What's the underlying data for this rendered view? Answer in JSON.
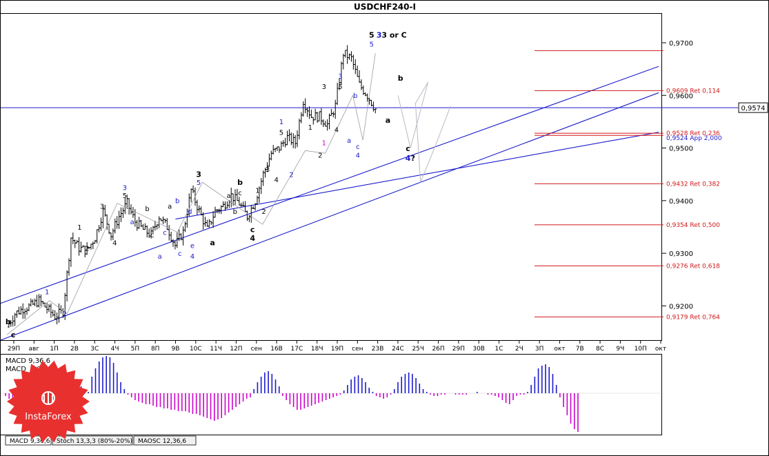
{
  "window": {
    "title": "USDCHF240-I",
    "tabs": [
      "MACD 9,36,6",
      "Stoch 13,3,3 (80%-20%)",
      "MAOSC 12,36,6"
    ],
    "active_tab": 0
  },
  "brand": {
    "logo_text": "InstaForex",
    "logo_color": "#e8312f"
  },
  "chart_data": [
    {
      "type": "line",
      "subtype": "ohlc-bars",
      "title": "USDCHF240-I",
      "ylim": [
        0.9135,
        0.9755
      ],
      "yticks": [
        0.92,
        0.93,
        0.94,
        0.95,
        0.96,
        0.97
      ],
      "ytick_labels": [
        "0,9200",
        "0,9300",
        "0,9400",
        "0,9500",
        "0,9600",
        "0,9700"
      ],
      "current_price": {
        "value": 0.9574,
        "label": "0,9574"
      },
      "x_tick_labels": [
        "29П",
        "авг",
        "1П",
        "2В",
        "3С",
        "4Ч",
        "5П",
        "8П",
        "9В",
        "10С",
        "11Ч",
        "12П",
        "сен",
        "16В",
        "17С",
        "18Ч",
        "19П",
        "сен",
        "23В",
        "24С",
        "25Ч",
        "26П",
        "29П",
        "30В",
        "1С",
        "2Ч",
        "3П",
        "окт",
        "7В",
        "8С",
        "9Ч",
        "10П",
        "окт"
      ],
      "x_count": 47,
      "close_path": [
        [
          0,
          0.916
        ],
        [
          1,
          0.9185
        ],
        [
          2,
          0.9195
        ],
        [
          3,
          0.92
        ],
        [
          4,
          0.921
        ],
        [
          5,
          0.9195
        ],
        [
          6,
          0.918
        ],
        [
          7,
          0.919
        ],
        [
          8,
          0.933
        ],
        [
          9,
          0.931
        ],
        [
          10,
          0.9305
        ],
        [
          11,
          0.933
        ],
        [
          12,
          0.938
        ],
        [
          13,
          0.9335
        ],
        [
          14,
          0.937
        ],
        [
          15,
          0.9395
        ],
        [
          16,
          0.936
        ],
        [
          17,
          0.9345
        ],
        [
          18,
          0.9335
        ],
        [
          19,
          0.937
        ],
        [
          20,
          0.935
        ],
        [
          21,
          0.9315
        ],
        [
          22,
          0.934
        ],
        [
          23,
          0.942
        ],
        [
          24,
          0.938
        ],
        [
          25,
          0.9345
        ],
        [
          26,
          0.938
        ],
        [
          27,
          0.939
        ],
        [
          28,
          0.941
        ],
        [
          29,
          0.9395
        ],
        [
          30,
          0.937
        ],
        [
          31,
          0.94
        ],
        [
          32,
          0.945
        ],
        [
          33,
          0.949
        ],
        [
          34,
          0.95
        ],
        [
          35,
          0.952
        ],
        [
          36,
          0.951
        ],
        [
          37,
          0.959
        ],
        [
          38,
          0.956
        ],
        [
          39,
          0.956
        ],
        [
          40,
          0.9545
        ],
        [
          41,
          0.958
        ],
        [
          42,
          0.968
        ],
        [
          43,
          0.967
        ],
        [
          44,
          0.962
        ],
        [
          45,
          0.96
        ],
        [
          46,
          0.9574
        ]
      ],
      "forecast_path": [
        [
          46,
          0.96
        ],
        [
          47,
          0.95
        ],
        [
          48,
          0.959
        ],
        [
          49,
          0.9625
        ],
        [
          50,
          0.9435
        ],
        [
          51,
          0.9505
        ],
        [
          52,
          0.958
        ]
      ],
      "channels": [
        {
          "x1": 0,
          "y1": 0.9205,
          "x2": 52,
          "y2": 0.9655
        },
        {
          "x1": 0,
          "y1": 0.9135,
          "x2": 52,
          "y2": 0.9605
        },
        {
          "x1": 14,
          "y1": 0.9365,
          "x2": 52,
          "y2": 0.953
        }
      ],
      "fib_levels": [
        {
          "value": 0.9685,
          "label": ""
        },
        {
          "value": 0.9609,
          "label": "0,9609 Ret 0,114"
        },
        {
          "value": 0.9528,
          "label": "0,9528 Ret 0,236"
        },
        {
          "value": 0.9524,
          "label": "0,9524 App 2,000"
        },
        {
          "value": 0.9432,
          "label": "0,9432 Ret 0,382"
        },
        {
          "value": 0.9354,
          "label": "0,9354 Ret 0,500"
        },
        {
          "value": 0.9276,
          "label": "0,9276 Ret 0,618"
        },
        {
          "value": 0.9179,
          "label": "0,9179 Ret 0,764"
        }
      ],
      "wave_labels": [
        {
          "text": "b",
          "x": 0.1,
          "y": 0.9165,
          "color": "#000000",
          "bold": true
        },
        {
          "text": "c",
          "x": 0.5,
          "y": 0.914,
          "color": "#000000",
          "bold": true
        },
        {
          "text": "1",
          "x": 3.2,
          "y": 0.9222,
          "color": "#1a1acc"
        },
        {
          "text": "2",
          "x": 4.6,
          "y": 0.918,
          "color": "#1a1acc"
        },
        {
          "text": "1",
          "x": 5.8,
          "y": 0.9345,
          "color": "#000000"
        },
        {
          "text": "2",
          "x": 6.4,
          "y": 0.9305,
          "color": "#000000"
        },
        {
          "text": "3",
          "x": 7.6,
          "y": 0.9385,
          "color": "#000000"
        },
        {
          "text": "4",
          "x": 8.6,
          "y": 0.9315,
          "color": "#000000"
        },
        {
          "text": "3",
          "x": 9.4,
          "y": 0.942,
          "color": "#1a1acc"
        },
        {
          "text": "5",
          "x": 9.4,
          "y": 0.9405,
          "color": "#000000"
        },
        {
          "text": "a",
          "x": 10.0,
          "y": 0.9355,
          "color": "#1a1acc"
        },
        {
          "text": "b",
          "x": 11.2,
          "y": 0.938,
          "color": "#000000"
        },
        {
          "text": "c",
          "x": 11.6,
          "y": 0.933,
          "color": "#000000"
        },
        {
          "text": "a",
          "x": 12.2,
          "y": 0.929,
          "color": "#1a1acc"
        },
        {
          "text": "a",
          "x": 13.0,
          "y": 0.9385,
          "color": "#000000"
        },
        {
          "text": "b",
          "x": 13.6,
          "y": 0.9395,
          "color": "#1a1acc"
        },
        {
          "text": "c",
          "x": 12.6,
          "y": 0.9335,
          "color": "#1a1acc"
        },
        {
          "text": "c",
          "x": 13.8,
          "y": 0.9295,
          "color": "#1a1acc"
        },
        {
          "text": "d",
          "x": 14.6,
          "y": 0.9375,
          "color": "#1a1acc"
        },
        {
          "text": "e",
          "x": 14.8,
          "y": 0.931,
          "color": "#1a1acc"
        },
        {
          "text": "4",
          "x": 14.8,
          "y": 0.929,
          "color": "#1a1acc"
        },
        {
          "text": "3",
          "x": 15.3,
          "y": 0.9445,
          "color": "#000000",
          "bold": true
        },
        {
          "text": "5",
          "x": 15.3,
          "y": 0.943,
          "color": "#1a1acc"
        },
        {
          "text": "a",
          "x": 16.4,
          "y": 0.9315,
          "color": "#000000",
          "bold": true
        },
        {
          "text": "b",
          "x": 18.6,
          "y": 0.943,
          "color": "#000000",
          "bold": true
        },
        {
          "text": "c",
          "x": 19.6,
          "y": 0.934,
          "color": "#000000",
          "bold": true
        },
        {
          "text": "4",
          "x": 19.6,
          "y": 0.9324,
          "color": "#000000",
          "bold": true
        },
        {
          "text": "a",
          "x": 17.7,
          "y": 0.9405,
          "color": "#000000"
        },
        {
          "text": "b",
          "x": 18.2,
          "y": 0.9375,
          "color": "#000000"
        },
        {
          "text": "c",
          "x": 18.6,
          "y": 0.941,
          "color": "#000000"
        },
        {
          "text": "1",
          "x": 20.0,
          "y": 0.9415,
          "color": "#000000"
        },
        {
          "text": "2",
          "x": 20.5,
          "y": 0.9375,
          "color": "#000000"
        },
        {
          "text": "3",
          "x": 20.8,
          "y": 0.9455,
          "color": "#000000"
        },
        {
          "text": "4",
          "x": 21.5,
          "y": 0.9435,
          "color": "#000000"
        },
        {
          "text": "1",
          "x": 21.9,
          "y": 0.9545,
          "color": "#1a1acc"
        },
        {
          "text": "5",
          "x": 21.9,
          "y": 0.9525,
          "color": "#000000"
        },
        {
          "text": "2",
          "x": 22.7,
          "y": 0.9445,
          "color": "#1a1acc"
        },
        {
          "text": "1",
          "x": 24.2,
          "y": 0.9535,
          "color": "#000000"
        },
        {
          "text": "1",
          "x": 25.3,
          "y": 0.9505,
          "color": "#cc00cc"
        },
        {
          "text": "2",
          "x": 25.0,
          "y": 0.9482,
          "color": "#000000"
        },
        {
          "text": "3",
          "x": 25.3,
          "y": 0.9612,
          "color": "#000000"
        },
        {
          "text": "5",
          "x": 26.6,
          "y": 0.9612,
          "color": "#000000"
        },
        {
          "text": "3",
          "x": 26.6,
          "y": 0.9632,
          "color": "#1a1acc"
        },
        {
          "text": "4",
          "x": 26.3,
          "y": 0.953,
          "color": "#000000"
        },
        {
          "text": "a",
          "x": 27.3,
          "y": 0.951,
          "color": "#1a1acc"
        },
        {
          "text": "b",
          "x": 27.8,
          "y": 0.9595,
          "color": "#1a1acc"
        },
        {
          "text": "c",
          "x": 28.0,
          "y": 0.9498,
          "color": "#1a1acc"
        },
        {
          "text": "4",
          "x": 28.0,
          "y": 0.9482,
          "color": "#1a1acc"
        },
        {
          "text": "5",
          "x": 29.1,
          "y": 0.971,
          "color": "#000000",
          "bold": true
        },
        {
          "text": "3",
          "x": 29.7,
          "y": 0.971,
          "color": "#1a1acc",
          "bold": true
        },
        {
          "text": "3 or C",
          "x": 30.9,
          "y": 0.971,
          "color": "#000000",
          "bold": true
        },
        {
          "text": "5",
          "x": 29.1,
          "y": 0.9693,
          "color": "#1a1acc"
        },
        {
          "text": "b",
          "x": 31.4,
          "y": 0.9628,
          "color": "#000000",
          "bold": true
        },
        {
          "text": "a",
          "x": 30.4,
          "y": 0.9548,
          "color": "#000000",
          "bold": true
        },
        {
          "text": "c",
          "x": 32.0,
          "y": 0.9494,
          "color": "#000000",
          "bold": true
        },
        {
          "text": "4",
          "x": 32.0,
          "y": 0.9476,
          "color": "#1a1acc",
          "bold": true
        },
        {
          "text": "?",
          "x": 32.4,
          "y": 0.9476,
          "color": "#000000",
          "bold": true
        }
      ]
    },
    {
      "type": "bar",
      "title": "MACD 9,36,6",
      "labels": {
        "main": "MACD 9,36,6",
        "value": "0,00"
      },
      "ylim": [
        -0.003,
        0.0028
      ],
      "colors": {
        "positive": "#1a1acc",
        "negative": "#cc00cc"
      },
      "values": [
        -0.0002,
        -0.0004,
        -0.0006,
        -0.0008,
        -0.001,
        -0.0011,
        -0.001,
        -0.0009,
        -0.0008,
        -0.0007,
        -0.0005,
        -0.0003,
        -0.0001,
        0.0002,
        0.0004,
        0.0006,
        0.0008,
        0.0009,
        0.001,
        0.0009,
        0.0007,
        0.0005,
        0.0003,
        0.0001,
        0.0012,
        0.0018,
        0.0023,
        0.0026,
        0.0027,
        0.0026,
        0.0022,
        0.0015,
        0.0008,
        0.0003,
        -0.0001,
        -0.0003,
        -0.0005,
        -0.0006,
        -0.0007,
        -0.0008,
        -0.0008,
        -0.0009,
        -0.001,
        -0.001,
        -0.0011,
        -0.0011,
        -0.0012,
        -0.0012,
        -0.0013,
        -0.0013,
        -0.0013,
        -0.0014,
        -0.0015,
        -0.0015,
        -0.0016,
        -0.0017,
        -0.0018,
        -0.0019,
        -0.002,
        -0.0019,
        -0.0018,
        -0.0016,
        -0.0014,
        -0.0012,
        -0.001,
        -0.0008,
        -0.0006,
        -0.0004,
        -0.0003,
        0.0003,
        0.0008,
        0.0012,
        0.0015,
        0.0016,
        0.0014,
        0.001,
        0.0005,
        -0.0002,
        -0.0005,
        -0.0008,
        -0.001,
        -0.0012,
        -0.0012,
        -0.0011,
        -0.001,
        -0.0009,
        -0.0008,
        -0.0007,
        -0.0006,
        -0.0005,
        -0.0004,
        -0.0003,
        -0.0002,
        -0.0001,
        0.0002,
        0.0006,
        0.001,
        0.0012,
        0.0013,
        0.0011,
        0.0008,
        0.0004,
        0.0001,
        -0.0002,
        -0.0003,
        -0.0004,
        -0.0003,
        -0.0001,
        0.0003,
        0.0008,
        0.0012,
        0.0014,
        0.0015,
        0.0014,
        0.0011,
        0.0007,
        0.0003,
        0.0001,
        -0.0001,
        -0.0002,
        -0.0002,
        -0.0001,
        -0.0001,
        0.0,
        0.0,
        -0.0001,
        -0.0001,
        -0.0001,
        -0.0001,
        0.0,
        0.0,
        0.0001,
        0.0,
        0.0,
        -0.0001,
        -0.0001,
        -0.0002,
        -0.0003,
        -0.0005,
        -0.0007,
        -0.0008,
        -0.0005,
        -0.0002,
        -0.0001,
        -0.0001,
        0.0001,
        0.0006,
        0.0012,
        0.0018,
        0.002,
        0.0021,
        0.0019,
        0.0014,
        0.0006,
        -0.0003,
        -0.001,
        -0.0016,
        -0.0022,
        -0.0026,
        -0.0028
      ]
    }
  ]
}
